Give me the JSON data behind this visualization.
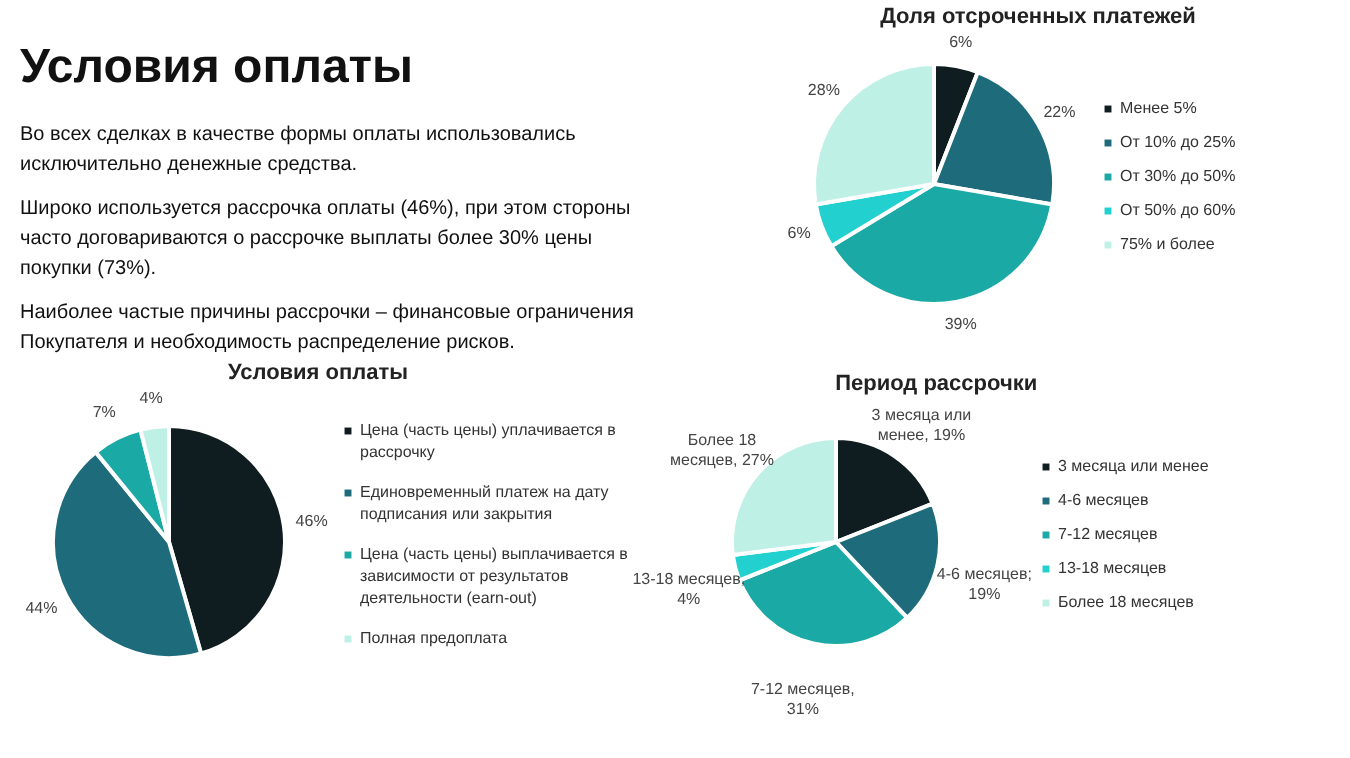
{
  "chart_data": [
    {
      "type": "other",
      "title": "Условия оплаты",
      "annotations": [
        "Во всех сделках в качестве формы оплаты использовались исключительно денежные средства.",
        "Широко используется рассрочка оплаты (46%), при этом стороны часто договариваются о рассрочке выплаты более 30% цены покупки (73%).",
        "Наиболее частые причины рассрочки – финансовые ограничения Покупателя и необходимость распределение рисков."
      ]
    },
    {
      "type": "pie",
      "title": "Доля отсроченных платежей",
      "categories": [
        "Менее 5%",
        "От 10% до 25%",
        "От 30% до 50%",
        "От 50% до 60%",
        "75% и более"
      ],
      "values": [
        6,
        22,
        39,
        6,
        28
      ],
      "value_labels": [
        "6%",
        "22%",
        "39%",
        "6%",
        "28%"
      ],
      "colors": [
        "#0f1c20",
        "#1d6b7b",
        "#1ba9a5",
        "#22d0cf",
        "#bff0e6"
      ],
      "legend": "right"
    },
    {
      "type": "pie",
      "title": "Условия оплаты",
      "categories": [
        "Цена (часть цены) уплачивается в рассрочку",
        "Единовременный платеж на дату подписания или закрытия",
        "Цена (часть цены) выплачивается в зависимости от результатов деятельности (earn-out)",
        "Полная предоплата"
      ],
      "values": [
        46,
        44,
        7,
        4
      ],
      "value_labels": [
        "46%",
        "44%",
        "7%",
        "4%"
      ],
      "colors": [
        "#0f1c20",
        "#1d6b7b",
        "#1ba9a5",
        "#bff0e6"
      ],
      "legend": "right"
    },
    {
      "type": "pie",
      "title": "Период рассрочки",
      "categories": [
        "3 месяца или менее",
        "4-6 месяцев",
        "7-12 месяцев",
        "13-18 месяцев",
        "Более 18 месяцев"
      ],
      "values": [
        19,
        19,
        31,
        4,
        27
      ],
      "value_labels": [
        "3 месяца или менее, 19%",
        "4-6 месяцев; 19%",
        "7-12 месяцев, 31%",
        "13-18 месяцев, 4%",
        "Более 18 месяцев, 27%"
      ],
      "colors": [
        "#0f1c20",
        "#1d6b7b",
        "#1ba9a5",
        "#22d0cf",
        "#bff0e6"
      ],
      "legend": "right"
    }
  ]
}
